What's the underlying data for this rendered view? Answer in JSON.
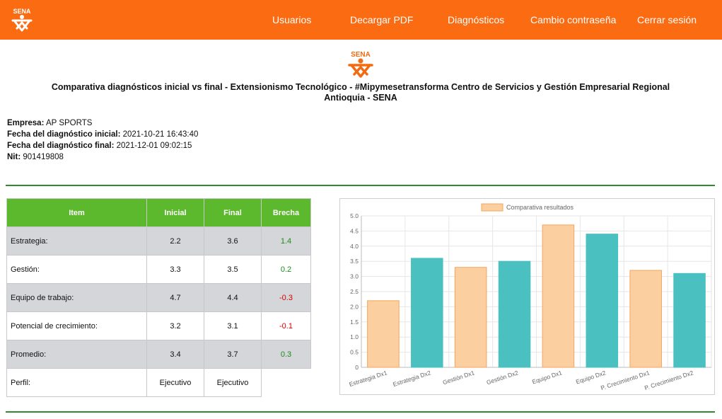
{
  "nav": {
    "items": [
      "Usuarios",
      "Decargar PDF",
      "Diagnósticos",
      "Cambio contraseña",
      "Cerrar sesión"
    ],
    "logo_text": "SENA",
    "color": "#fa6b12"
  },
  "header": {
    "logo_text": "SENA",
    "title": "Comparativa diagnósticos inicial vs final - Extensionismo Tecnológico - #Mipymesetransforma Centro de Servicios y Gestión Empresarial Regional Antioquia - SENA"
  },
  "info": {
    "empresa_label": "Empresa:",
    "empresa_value": "AP SPORTS",
    "inicial_label": "Fecha del diagnóstico inicial:",
    "inicial_value": "2021-10-21 16:43:40",
    "final_label": "Fecha del diagnóstico final:",
    "final_value": "2021-12-01 09:02:15",
    "nit_label": "Nit:",
    "nit_value": "901419808"
  },
  "table": {
    "headers": [
      "Item",
      "Inicial",
      "Final",
      "Brecha"
    ],
    "rows": [
      {
        "item": "Estrategia:",
        "inicial": "2.2",
        "final": "3.6",
        "brecha": "1.4"
      },
      {
        "item": "Gestión:",
        "inicial": "3.3",
        "final": "3.5",
        "brecha": "0.2"
      },
      {
        "item": "Equipo de trabajo:",
        "inicial": "4.7",
        "final": "4.4",
        "brecha": "-0.3"
      },
      {
        "item": "Potencial de crecimiento:",
        "inicial": "3.2",
        "final": "3.1",
        "brecha": "-0.1"
      },
      {
        "item": "Promedio:",
        "inicial": "3.4",
        "final": "3.7",
        "brecha": "0.3"
      }
    ],
    "perfil": {
      "item": "Perfil:",
      "inicial": "Ejecutivo",
      "final": "Ejecutivo"
    },
    "header_color": "#5cb82c",
    "positive_color": "#1b8a1b",
    "negative_color": "#d90000"
  },
  "chart_data": {
    "type": "bar",
    "legend": "Comparativa resultados",
    "categories": [
      "Estrategia Dx1",
      "Estrategia Dx2",
      "Gestión Dx1",
      "Gestión Dx2",
      "Equipo Dx1",
      "Equipo Dx2",
      "P. Crecimiento Dx1",
      "P. Crecimiento Dx2"
    ],
    "values": [
      2.2,
      3.6,
      3.3,
      3.5,
      4.7,
      4.4,
      3.2,
      3.1
    ],
    "bar_colors": [
      "#fccfa1",
      "#4bc0c0",
      "#fccfa1",
      "#4bc0c0",
      "#fccfa1",
      "#4bc0c0",
      "#fccfa1",
      "#4bc0c0"
    ],
    "bar_borders": [
      "#f5a55a",
      "#4bc0c0",
      "#f5a55a",
      "#4bc0c0",
      "#f5a55a",
      "#4bc0c0",
      "#f5a55a",
      "#4bc0c0"
    ],
    "ylim": [
      0,
      5
    ],
    "yticks": [
      "0",
      "0.5",
      "1.0",
      "1.5",
      "2.0",
      "2.5",
      "3.0",
      "3.5",
      "4.0",
      "4.5",
      "5.0"
    ],
    "legend_position": "top",
    "grid": true
  }
}
